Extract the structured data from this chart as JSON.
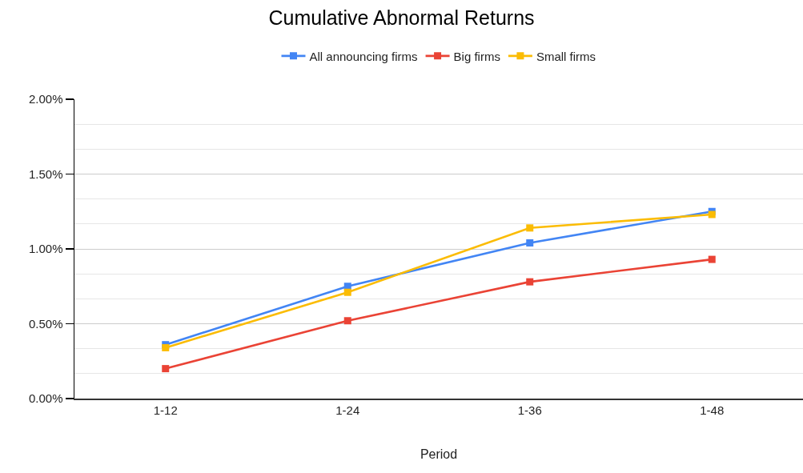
{
  "chart_data": {
    "type": "line",
    "title": "Cumulative Abnormal Returns",
    "xlabel": "Period",
    "categories": [
      "1-12",
      "1-24",
      "1-36",
      "1-48"
    ],
    "series": [
      {
        "name": "All announcing firms",
        "color": "#4285f4",
        "values": [
          0.36,
          0.75,
          1.04,
          1.25
        ]
      },
      {
        "name": "Big firms",
        "color": "#ea4335",
        "values": [
          0.2,
          0.52,
          0.78,
          0.93
        ]
      },
      {
        "name": "Small firms",
        "color": "#fbbc04",
        "values": [
          0.34,
          0.71,
          1.14,
          1.23
        ]
      }
    ],
    "ylim": [
      0,
      2
    ],
    "yticks": [
      {
        "value": 0,
        "label": "0.00%"
      },
      {
        "value": 0.1667,
        "label": null
      },
      {
        "value": 0.3333,
        "label": null
      },
      {
        "value": 0.5,
        "label": "0.50%"
      },
      {
        "value": 0.6667,
        "label": null
      },
      {
        "value": 0.8333,
        "label": null
      },
      {
        "value": 1,
        "label": "1.00%"
      },
      {
        "value": 1.1667,
        "label": null
      },
      {
        "value": 1.3333,
        "label": null
      },
      {
        "value": 1.5,
        "label": "1.50%"
      },
      {
        "value": 1.6667,
        "label": null
      },
      {
        "value": 1.8333,
        "label": null
      },
      {
        "value": 2,
        "label": "2.00%"
      }
    ],
    "grid": "y",
    "legend": "top",
    "marker": "square",
    "line_style": "solid"
  }
}
